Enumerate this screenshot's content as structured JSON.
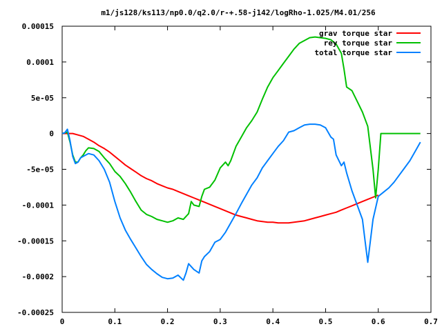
{
  "chart_data": {
    "type": "line",
    "title": "m1/js128/ks113/np0.0/q2.0/r-+.58-j142/logRho-1.025/M4.01/256",
    "xlabel": "",
    "ylabel": "",
    "xlim": [
      0,
      0.7
    ],
    "ylim": [
      -0.00025,
      0.00015
    ],
    "x_ticks": [
      0,
      0.1,
      0.2,
      0.3,
      0.4,
      0.5,
      0.6,
      0.7
    ],
    "x_tick_labels": [
      "0",
      "0.1",
      "0.2",
      "0.3",
      "0.4",
      "0.5",
      "0.6",
      "0.7"
    ],
    "y_ticks": [
      -0.00025,
      -0.0002,
      -0.00015,
      -0.0001,
      -5e-05,
      0,
      5e-05,
      0.0001,
      0.00015
    ],
    "y_tick_labels": [
      "-0.00025",
      "-0.0002",
      "-0.00015",
      "-0.0001",
      "-5e-05",
      "0",
      "5e-05",
      "0.0001",
      "0.00015"
    ],
    "grid": false,
    "legend_position": "top-right",
    "series": [
      {
        "name": "grav torque star",
        "color": "#ff0000",
        "points": [
          [
            0.0,
            0.0
          ],
          [
            0.01,
            0.0
          ],
          [
            0.02,
            0.0
          ],
          [
            0.03,
            -2e-06
          ],
          [
            0.04,
            -4e-06
          ],
          [
            0.05,
            -8e-06
          ],
          [
            0.06,
            -1.2e-05
          ],
          [
            0.07,
            -1.7e-05
          ],
          [
            0.08,
            -2.1e-05
          ],
          [
            0.09,
            -2.6e-05
          ],
          [
            0.1,
            -3.2e-05
          ],
          [
            0.11,
            -3.8e-05
          ],
          [
            0.12,
            -4.4e-05
          ],
          [
            0.13,
            -4.9e-05
          ],
          [
            0.14,
            -5.4e-05
          ],
          [
            0.15,
            -5.9e-05
          ],
          [
            0.16,
            -6.3e-05
          ],
          [
            0.17,
            -6.6e-05
          ],
          [
            0.18,
            -7e-05
          ],
          [
            0.19,
            -7.3e-05
          ],
          [
            0.2,
            -7.6e-05
          ],
          [
            0.21,
            -7.8e-05
          ],
          [
            0.22,
            -8.1e-05
          ],
          [
            0.23,
            -8.4e-05
          ],
          [
            0.24,
            -8.7e-05
          ],
          [
            0.25,
            -9e-05
          ],
          [
            0.26,
            -9.3e-05
          ],
          [
            0.27,
            -9.6e-05
          ],
          [
            0.28,
            -9.9e-05
          ],
          [
            0.29,
            -0.000102
          ],
          [
            0.3,
            -0.000105
          ],
          [
            0.31,
            -0.000108
          ],
          [
            0.32,
            -0.000111
          ],
          [
            0.33,
            -0.000114
          ],
          [
            0.34,
            -0.000116
          ],
          [
            0.35,
            -0.000118
          ],
          [
            0.36,
            -0.00012
          ],
          [
            0.37,
            -0.000122
          ],
          [
            0.38,
            -0.000123
          ],
          [
            0.39,
            -0.000124
          ],
          [
            0.4,
            -0.000124
          ],
          [
            0.41,
            -0.000125
          ],
          [
            0.42,
            -0.000125
          ],
          [
            0.43,
            -0.000125
          ],
          [
            0.44,
            -0.000124
          ],
          [
            0.45,
            -0.000123
          ],
          [
            0.46,
            -0.000122
          ],
          [
            0.47,
            -0.00012
          ],
          [
            0.48,
            -0.000118
          ],
          [
            0.49,
            -0.000116
          ],
          [
            0.5,
            -0.000114
          ],
          [
            0.51,
            -0.000112
          ],
          [
            0.52,
            -0.00011
          ],
          [
            0.53,
            -0.000107
          ],
          [
            0.54,
            -0.000104
          ],
          [
            0.55,
            -0.000101
          ],
          [
            0.56,
            -9.8e-05
          ],
          [
            0.57,
            -9.5e-05
          ],
          [
            0.58,
            -9.2e-05
          ],
          [
            0.59,
            -8.9e-05
          ],
          [
            0.6,
            -8.6e-05
          ]
        ]
      },
      {
        "name": "rey torque star",
        "color": "#00c000",
        "points": [
          [
            0.0,
            0.0
          ],
          [
            0.01,
            2e-06
          ],
          [
            0.015,
            -1.2e-05
          ],
          [
            0.02,
            -3e-05
          ],
          [
            0.025,
            -4e-05
          ],
          [
            0.03,
            -4e-05
          ],
          [
            0.035,
            -3.4e-05
          ],
          [
            0.04,
            -3e-05
          ],
          [
            0.045,
            -2.4e-05
          ],
          [
            0.05,
            -2e-05
          ],
          [
            0.06,
            -2.1e-05
          ],
          [
            0.07,
            -2.5e-05
          ],
          [
            0.08,
            -3.4e-05
          ],
          [
            0.09,
            -4.2e-05
          ],
          [
            0.1,
            -5.3e-05
          ],
          [
            0.11,
            -6e-05
          ],
          [
            0.12,
            -7e-05
          ],
          [
            0.13,
            -8.2e-05
          ],
          [
            0.14,
            -9.5e-05
          ],
          [
            0.15,
            -0.000107
          ],
          [
            0.16,
            -0.000113
          ],
          [
            0.17,
            -0.000116
          ],
          [
            0.18,
            -0.00012
          ],
          [
            0.19,
            -0.000122
          ],
          [
            0.2,
            -0.000124
          ],
          [
            0.21,
            -0.000122
          ],
          [
            0.22,
            -0.000118
          ],
          [
            0.23,
            -0.00012
          ],
          [
            0.24,
            -0.000112
          ],
          [
            0.245,
            -9.5e-05
          ],
          [
            0.25,
            -0.0001
          ],
          [
            0.26,
            -0.000102
          ],
          [
            0.265,
            -8.8e-05
          ],
          [
            0.27,
            -7.8e-05
          ],
          [
            0.28,
            -7.5e-05
          ],
          [
            0.29,
            -6.5e-05
          ],
          [
            0.3,
            -4.8e-05
          ],
          [
            0.31,
            -4e-05
          ],
          [
            0.315,
            -4.5e-05
          ],
          [
            0.32,
            -3.8e-05
          ],
          [
            0.33,
            -1.8e-05
          ],
          [
            0.34,
            -5e-06
          ],
          [
            0.35,
            8e-06
          ],
          [
            0.36,
            1.8e-05
          ],
          [
            0.37,
            3e-05
          ],
          [
            0.38,
            4.8e-05
          ],
          [
            0.39,
            6.5e-05
          ],
          [
            0.4,
            7.8e-05
          ],
          [
            0.41,
            8.8e-05
          ],
          [
            0.42,
            9.8e-05
          ],
          [
            0.43,
            0.000108
          ],
          [
            0.44,
            0.000118
          ],
          [
            0.45,
            0.000126
          ],
          [
            0.46,
            0.00013
          ],
          [
            0.47,
            0.000134
          ],
          [
            0.48,
            0.000135
          ],
          [
            0.49,
            0.000134
          ],
          [
            0.5,
            0.000133
          ],
          [
            0.51,
            0.000131
          ],
          [
            0.52,
            0.000125
          ],
          [
            0.53,
            0.000112
          ],
          [
            0.535,
            9e-05
          ],
          [
            0.54,
            6.5e-05
          ],
          [
            0.55,
            6e-05
          ],
          [
            0.56,
            4.5e-05
          ],
          [
            0.57,
            3e-05
          ],
          [
            0.58,
            1e-05
          ],
          [
            0.59,
            -5e-05
          ],
          [
            0.595,
            -9e-05
          ],
          [
            0.6,
            -5e-05
          ],
          [
            0.605,
            0.0
          ],
          [
            0.62,
            0.0
          ],
          [
            0.64,
            0.0
          ],
          [
            0.66,
            0.0
          ],
          [
            0.68,
            0.0
          ]
        ]
      },
      {
        "name": "total torque star",
        "color": "#0080ff",
        "points": [
          [
            0.0,
            0.0
          ],
          [
            0.005,
            1e-06
          ],
          [
            0.01,
            6e-06
          ],
          [
            0.015,
            -1e-05
          ],
          [
            0.02,
            -3.2e-05
          ],
          [
            0.025,
            -4.2e-05
          ],
          [
            0.03,
            -4e-05
          ],
          [
            0.035,
            -3.4e-05
          ],
          [
            0.04,
            -3.2e-05
          ],
          [
            0.05,
            -2.8e-05
          ],
          [
            0.06,
            -3e-05
          ],
          [
            0.07,
            -3.8e-05
          ],
          [
            0.08,
            -5e-05
          ],
          [
            0.09,
            -6.8e-05
          ],
          [
            0.1,
            -9.5e-05
          ],
          [
            0.11,
            -0.000118
          ],
          [
            0.12,
            -0.000135
          ],
          [
            0.13,
            -0.000148
          ],
          [
            0.14,
            -0.00016
          ],
          [
            0.15,
            -0.000172
          ],
          [
            0.16,
            -0.000183
          ],
          [
            0.17,
            -0.00019
          ],
          [
            0.18,
            -0.000196
          ],
          [
            0.19,
            -0.000201
          ],
          [
            0.2,
            -0.000203
          ],
          [
            0.21,
            -0.000202
          ],
          [
            0.22,
            -0.000198
          ],
          [
            0.23,
            -0.000205
          ],
          [
            0.235,
            -0.000195
          ],
          [
            0.24,
            -0.000182
          ],
          [
            0.25,
            -0.00019
          ],
          [
            0.26,
            -0.000195
          ],
          [
            0.265,
            -0.000178
          ],
          [
            0.27,
            -0.000172
          ],
          [
            0.28,
            -0.000165
          ],
          [
            0.29,
            -0.000152
          ],
          [
            0.3,
            -0.000148
          ],
          [
            0.31,
            -0.000138
          ],
          [
            0.32,
            -0.000125
          ],
          [
            0.33,
            -0.000112
          ],
          [
            0.34,
            -9.8e-05
          ],
          [
            0.35,
            -8.5e-05
          ],
          [
            0.36,
            -7.2e-05
          ],
          [
            0.37,
            -6.2e-05
          ],
          [
            0.38,
            -4.8e-05
          ],
          [
            0.39,
            -3.8e-05
          ],
          [
            0.4,
            -2.8e-05
          ],
          [
            0.41,
            -1.8e-05
          ],
          [
            0.42,
            -1e-05
          ],
          [
            0.43,
            2e-06
          ],
          [
            0.44,
            4e-06
          ],
          [
            0.45,
            8e-06
          ],
          [
            0.46,
            1.2e-05
          ],
          [
            0.47,
            1.3e-05
          ],
          [
            0.48,
            1.3e-05
          ],
          [
            0.49,
            1.2e-05
          ],
          [
            0.5,
            8e-06
          ],
          [
            0.51,
            -5e-06
          ],
          [
            0.515,
            -8e-06
          ],
          [
            0.52,
            -3e-05
          ],
          [
            0.53,
            -4.5e-05
          ],
          [
            0.535,
            -4e-05
          ],
          [
            0.54,
            -5.5e-05
          ],
          [
            0.55,
            -8e-05
          ],
          [
            0.56,
            -0.0001
          ],
          [
            0.57,
            -0.00012
          ],
          [
            0.575,
            -0.00015
          ],
          [
            0.58,
            -0.00018
          ],
          [
            0.585,
            -0.00015
          ],
          [
            0.59,
            -0.00012
          ],
          [
            0.6,
            -8.8e-05
          ],
          [
            0.61,
            -8.2e-05
          ],
          [
            0.62,
            -7.6e-05
          ],
          [
            0.63,
            -6.8e-05
          ],
          [
            0.64,
            -5.8e-05
          ],
          [
            0.65,
            -4.8e-05
          ],
          [
            0.66,
            -3.8e-05
          ],
          [
            0.67,
            -2.5e-05
          ],
          [
            0.68,
            -1.2e-05
          ]
        ]
      }
    ]
  }
}
